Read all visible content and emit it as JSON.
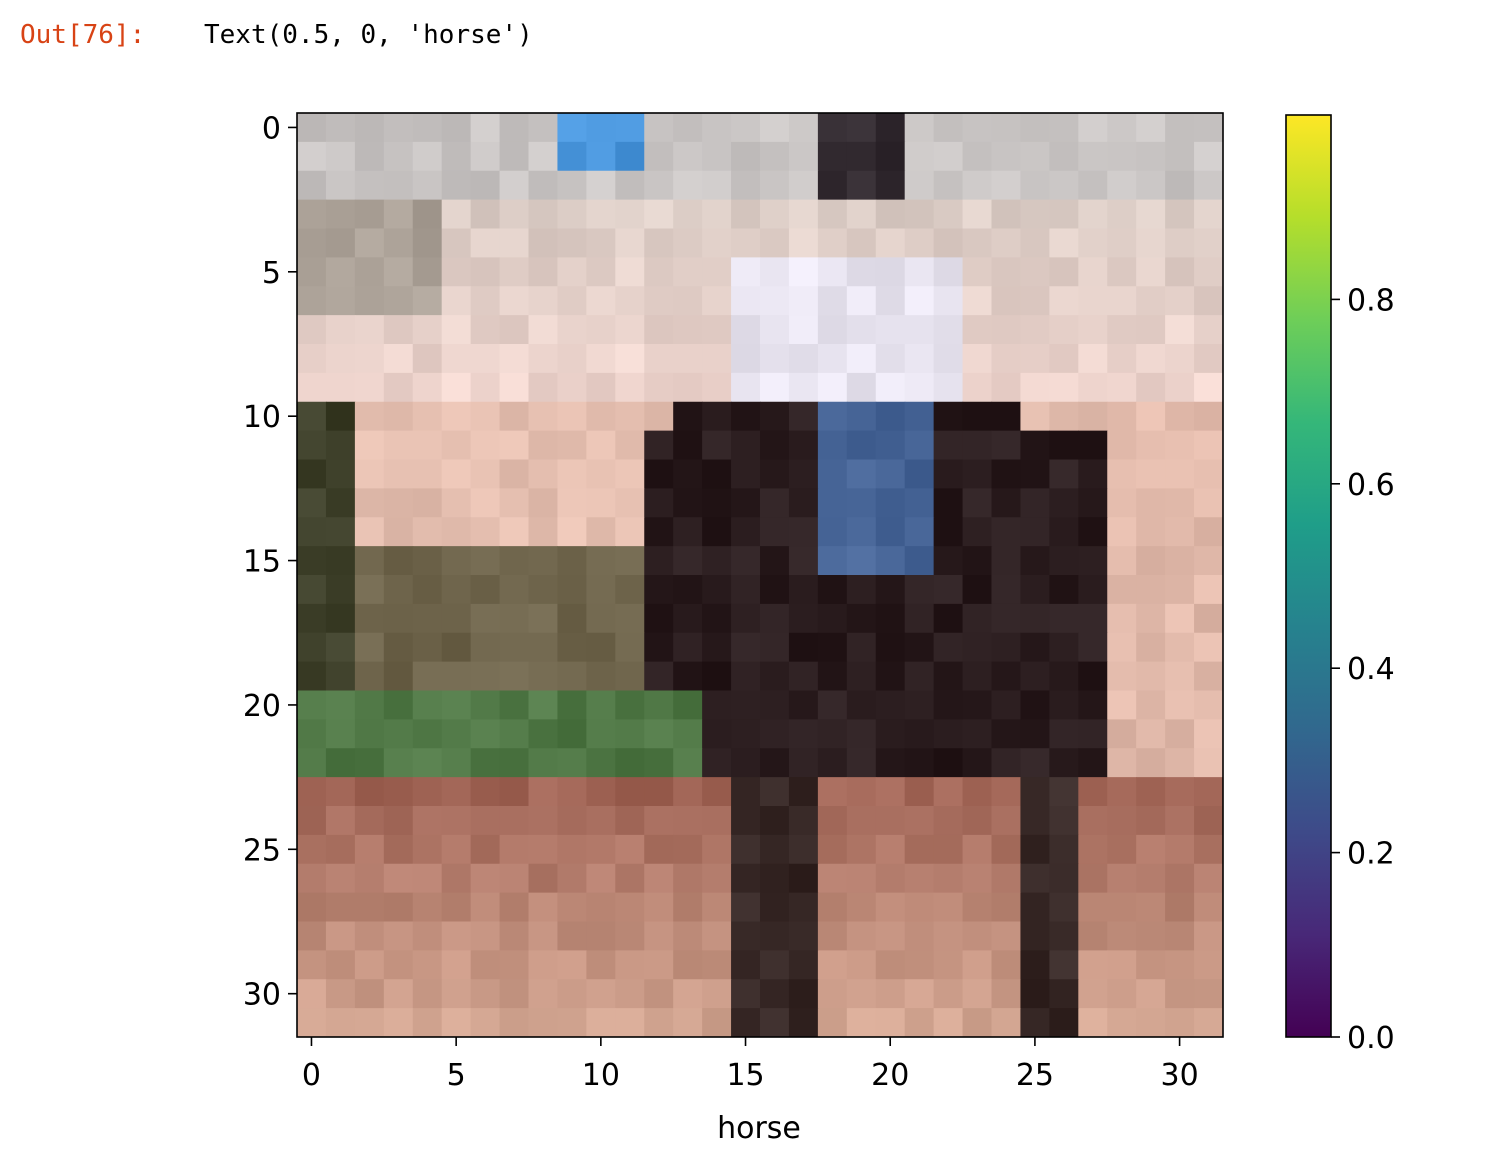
{
  "cell": {
    "prompt": "Out[76]:",
    "output": "Text(0.5, 0, 'horse')"
  },
  "chart_data": [
    {
      "type": "heatmap",
      "title": "",
      "xlabel": "horse",
      "ylabel": "",
      "image_size": [
        32,
        32
      ],
      "xlim": [
        -0.5,
        31.5
      ],
      "ylim": [
        31.5,
        -0.5
      ],
      "xticks": [
        0,
        5,
        10,
        15,
        20,
        25,
        30
      ],
      "yticks": [
        0,
        5,
        10,
        15,
        20,
        25,
        30
      ],
      "xtick_labels": [
        "0",
        "5",
        "10",
        "15",
        "20",
        "25",
        "30"
      ],
      "ytick_labels": [
        "0",
        "5",
        "10",
        "15",
        "20",
        "25",
        "30"
      ],
      "grid": false,
      "description_rows": [
        "row 0-2: grey/white wall, blue patch near col 10-11",
        "rows 3-9: pale beige/pink wall",
        "rows 10-22: dark horse body cols 12-27, green hedge cols 0-12 bottom",
        "rows 23-31: reddish-brown ground, dark legs at cols 15-17 and 25-26"
      ]
    },
    {
      "type": "colorbar",
      "colormap": "viridis",
      "range": [
        0.0,
        1.0
      ],
      "ticks": [
        0.0,
        0.2,
        0.4,
        0.6,
        0.8
      ],
      "tick_labels": [
        "0.0",
        "0.2",
        "0.4",
        "0.6",
        "0.8"
      ]
    }
  ],
  "colors": {
    "prompt": "#d84315",
    "viridis_stops": [
      "#440154",
      "#482878",
      "#3e4a89",
      "#31688e",
      "#26828e",
      "#1f9e89",
      "#35b779",
      "#6ece58",
      "#b5de2b",
      "#fde725"
    ]
  }
}
